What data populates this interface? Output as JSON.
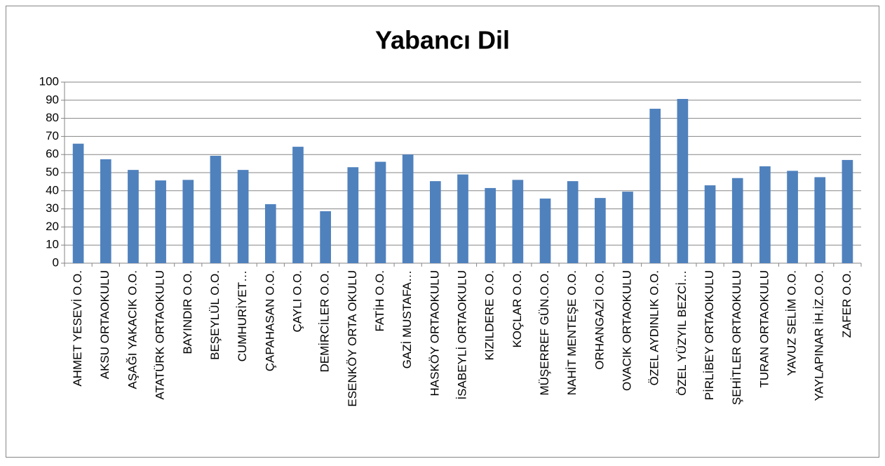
{
  "chart_data": {
    "type": "bar",
    "title": "Yabancı Dil",
    "categories": [
      "AHMET YESEVİ O.O.",
      "AKSU ORTAOKULU",
      "AŞAĞI YAKACIK O.O.",
      "ATATÜRK ORTAOKULU",
      "BAYINDIR O.O.",
      "BEŞEYLÜL O.O.",
      "CUMHURİYET…",
      "ÇAPAHASAN O.O.",
      "ÇAYLI O.O.",
      "DEMİRCİLER O.O.",
      "ESENKÖY ORTA OKULU",
      "FATİH O.O.",
      "GAZİ MUSTAFA…",
      "HASKÖY ORTAOKULU",
      "İSABEYLİ ORTAOKULU",
      "KIZILDERE O.O.",
      "KOÇLAR O.O.",
      "MÜŞERREF GÜN.O.O.",
      "NAHİT MENTEŞE O.O.",
      "ORHANGAZİ O.O.",
      "OVACIK ORTAOKULU",
      "ÖZEL AYDINLIK O.O.",
      "ÖZEL YÜZYIL BEZCİ…",
      "PİRLİBEY ORTAOKULU",
      "ŞEHİTLER ORTAOKULU",
      "TURAN ORTAOKULU",
      "YAVUZ SELİM O.O.",
      "YAYLAPINAR İH.İZ.O.O.",
      "ZAFER O.O."
    ],
    "values": [
      66,
      57.4,
      51.5,
      45.7,
      46,
      59.3,
      51.5,
      32.6,
      64.3,
      28.7,
      53,
      56,
      60,
      45.3,
      49,
      41.5,
      46,
      35.7,
      45.3,
      36,
      39.5,
      85.3,
      90.7,
      43,
      47,
      53.5,
      51,
      47.5,
      57
    ],
    "color": "#4f81bd",
    "ylim": [
      0,
      100
    ],
    "yticks": [
      0,
      10,
      20,
      30,
      40,
      50,
      60,
      70,
      80,
      90,
      100
    ],
    "grid": true
  }
}
